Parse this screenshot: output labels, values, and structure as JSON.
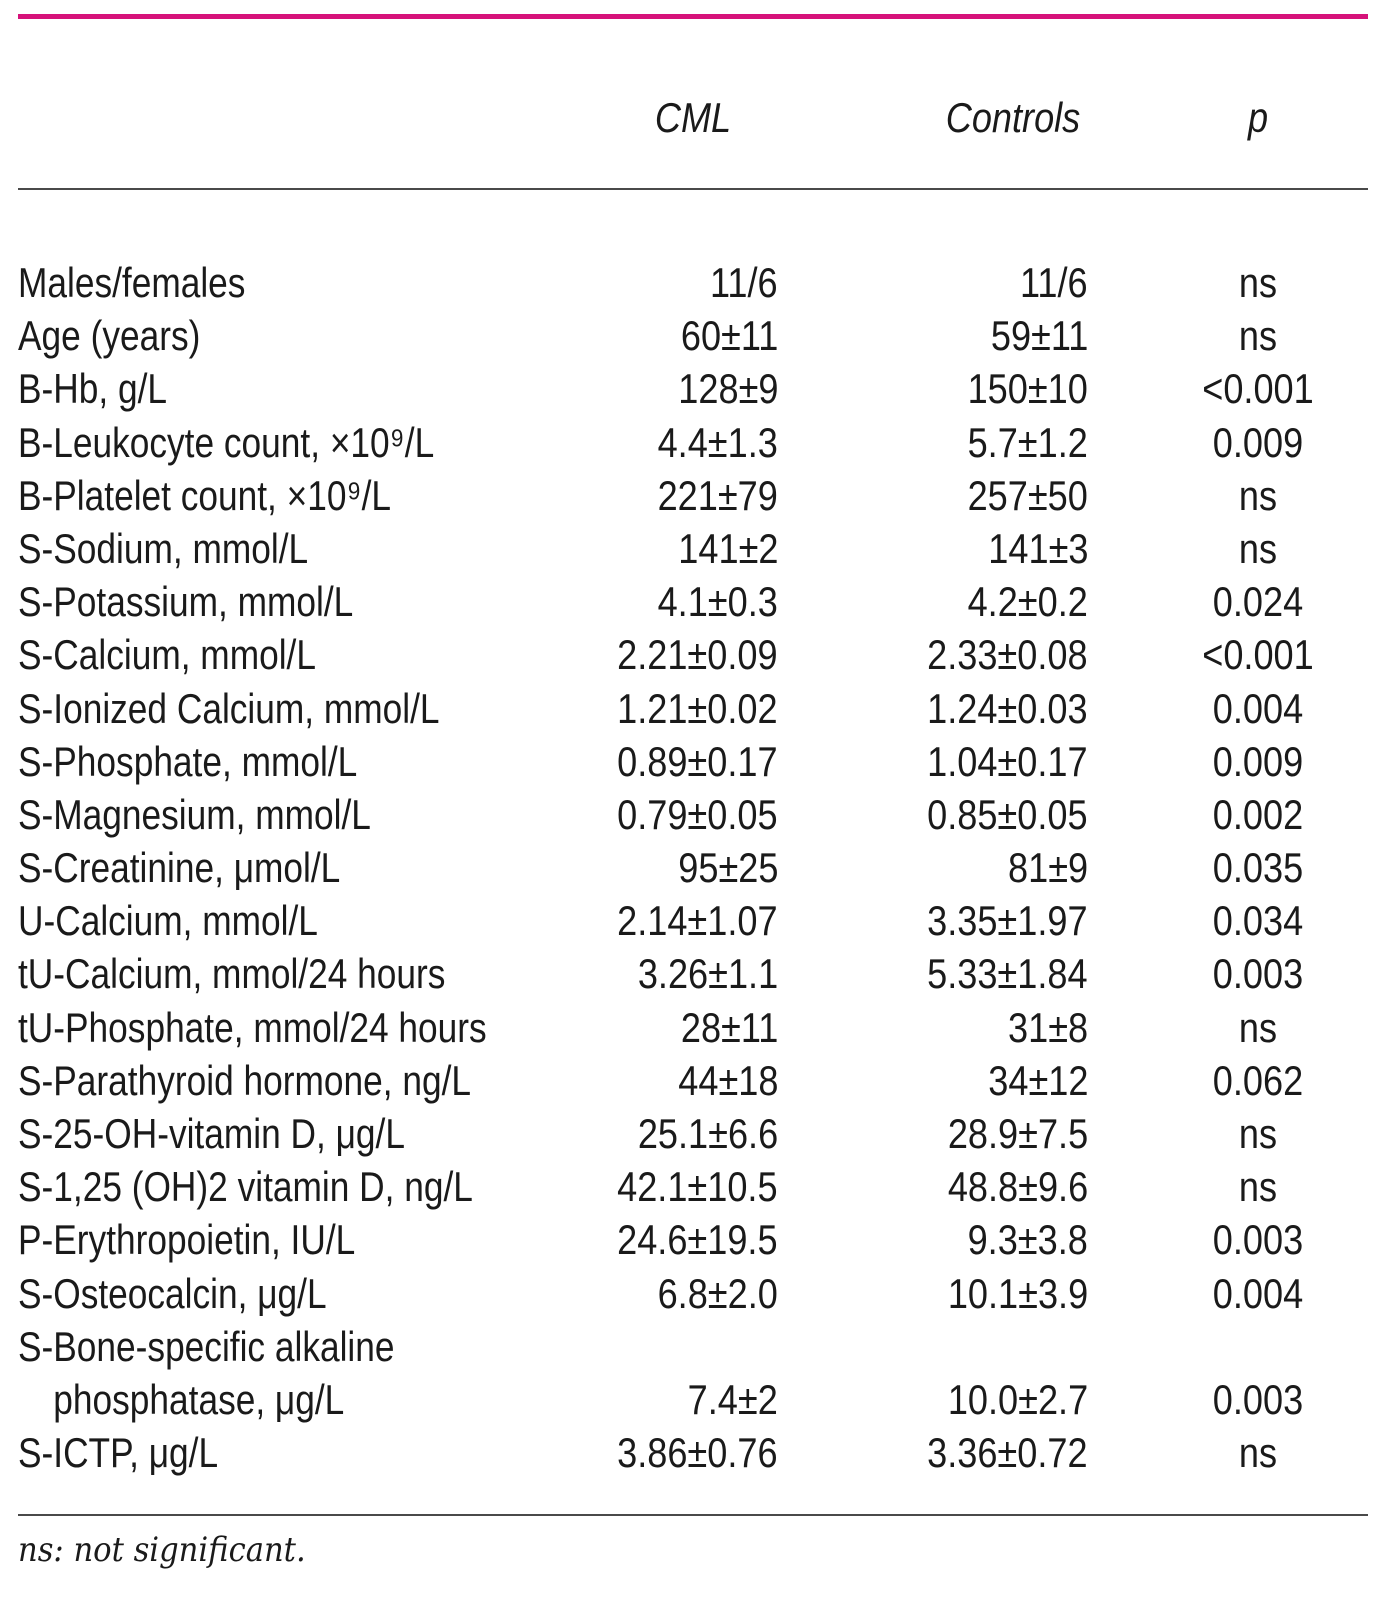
{
  "table": {
    "headers": {
      "cml": "CML",
      "controls": "Controls",
      "p": "p"
    },
    "rows": [
      {
        "label": "Males/females",
        "cml": "11/6",
        "controls": "11/6",
        "p": "ns"
      },
      {
        "label": "Age (years)",
        "cml": "60±11",
        "controls": "59±11",
        "p": "ns"
      },
      {
        "label": "B-Hb, g/L",
        "cml": "128±9",
        "controls": "150±10",
        "p": "<0.001"
      },
      {
        "label": "B-Leukocyte count, ×10⁹/L",
        "cml": "4.4±1.3",
        "controls": "5.7±1.2",
        "p": "0.009"
      },
      {
        "label": "B-Platelet count, ×10⁹/L",
        "cml": "221±79",
        "controls": "257±50",
        "p": "ns"
      },
      {
        "label": "S-Sodium, mmol/L",
        "cml": "141±2",
        "controls": "141±3",
        "p": "ns"
      },
      {
        "label": "S-Potassium, mmol/L",
        "cml": "4.1±0.3",
        "controls": "4.2±0.2",
        "p": "0.024"
      },
      {
        "label": "S-Calcium, mmol/L",
        "cml": "2.21±0.09",
        "controls": "2.33±0.08",
        "p": "<0.001"
      },
      {
        "label": "S-Ionized Calcium, mmol/L",
        "cml": "1.21±0.02",
        "controls": "1.24±0.03",
        "p": "0.004"
      },
      {
        "label": "S-Phosphate, mmol/L",
        "cml": "0.89±0.17",
        "controls": "1.04±0.17",
        "p": "0.009"
      },
      {
        "label": "S-Magnesium, mmol/L",
        "cml": "0.79±0.05",
        "controls": "0.85±0.05",
        "p": "0.002"
      },
      {
        "label": "S-Creatinine, μmol/L",
        "cml": "95±25",
        "controls": "81±9",
        "p": "0.035"
      },
      {
        "label": "U-Calcium, mmol/L",
        "cml": "2.14±1.07",
        "controls": "3.35±1.97",
        "p": "0.034"
      },
      {
        "label": "tU-Calcium, mmol/24 hours",
        "cml": "3.26±1.1",
        "controls": "5.33±1.84",
        "p": "0.003"
      },
      {
        "label": "tU-Phosphate, mmol/24 hours",
        "cml": "28±11",
        "controls": "31±8",
        "p": "ns"
      },
      {
        "label": "S-Parathyroid hormone, ng/L",
        "cml": "44±18",
        "controls": "34±12",
        "p": "0.062"
      },
      {
        "label": "S-25-OH-vitamin D, μg/L",
        "cml": "25.1±6.6",
        "controls": "28.9±7.5",
        "p": "ns"
      },
      {
        "label": "S-1,25 (OH)2 vitamin D, ng/L",
        "cml": "42.1±10.5",
        "controls": "48.8±9.6",
        "p": "ns"
      },
      {
        "label": "P-Erythropoietin, IU/L",
        "cml": "24.6±19.5",
        "controls": "9.3±3.8",
        "p": "0.003"
      },
      {
        "label": "S-Osteocalcin, μg/L",
        "cml": "6.8±2.0",
        "controls": "10.1±3.9",
        "p": "0.004"
      },
      {
        "label": "S-Bone-specific alkaline",
        "label_line2": "phosphatase, μg/L",
        "cml": "7.4±2",
        "controls": "10.0±2.7",
        "p": "0.003"
      },
      {
        "label": "S-ICTP, μg/L",
        "cml": "3.86±0.76",
        "controls": "3.36±0.72",
        "p": "ns"
      }
    ]
  },
  "footnote": "ns: not significant.",
  "colors": {
    "accent_rule": "#d6127a",
    "rule": "#4a4a4a",
    "text": "#1a1a1a"
  }
}
